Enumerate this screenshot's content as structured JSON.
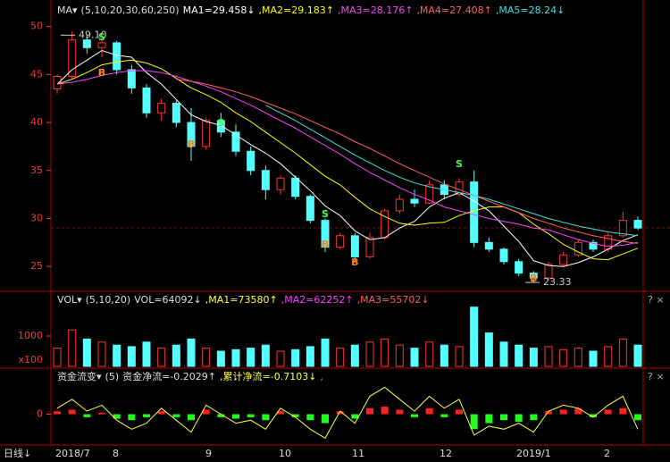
{
  "chart_data": [
    {
      "type": "candlestick",
      "indicator": "MA▾",
      "params": "(5,10,20,30,60,250)",
      "ylim": [
        22.5,
        50.9
      ],
      "yticks": [
        25,
        30,
        35,
        40,
        45,
        50
      ],
      "open": [
        43.5,
        44.8,
        48.6,
        47.8,
        48.3,
        45.5,
        43.6,
        41,
        42,
        40,
        37.5,
        40.2,
        39,
        37,
        35,
        33,
        34.2,
        32.3,
        29.8,
        27,
        28.2,
        26,
        28,
        30.8,
        32,
        31.6,
        33.5,
        32.5,
        33.8,
        27.5,
        26.8,
        25.5,
        24.3,
        23.8,
        25.2,
        26.2,
        27.5,
        26.8,
        28.2,
        29.8
      ],
      "high": [
        45,
        49.5,
        49.1,
        49,
        48.5,
        46,
        44,
        42.5,
        42.3,
        41.5,
        40.5,
        41,
        39.8,
        37.5,
        35.5,
        34.5,
        34.5,
        32.5,
        30,
        28.5,
        28.5,
        28.5,
        31,
        32.5,
        33,
        34,
        34,
        34.2,
        35,
        28,
        27,
        25.8,
        24.5,
        25.5,
        26.5,
        27.8,
        27.8,
        28.5,
        30.7,
        30.2
      ],
      "low": [
        43,
        44.5,
        47.2,
        46.8,
        45,
        43,
        40.5,
        40.2,
        39.5,
        36,
        37.2,
        38.5,
        36.5,
        34.5,
        32,
        32.5,
        32,
        29.5,
        26.5,
        26.8,
        25.5,
        25.8,
        27.8,
        30.5,
        31.2,
        31.5,
        32,
        32.3,
        27,
        26.5,
        25.2,
        24,
        23.3,
        23.5,
        25,
        26,
        26.5,
        26.5,
        28,
        28.8
      ],
      "close": [
        44.8,
        48.6,
        47.8,
        48.3,
        45.5,
        43.6,
        41,
        42,
        40,
        37.5,
        40.2,
        39,
        37,
        35,
        33,
        34.2,
        32.3,
        29.8,
        27,
        28.2,
        26,
        28,
        30.8,
        32,
        31.6,
        33.5,
        32.5,
        33.8,
        27.5,
        26.8,
        25.5,
        24.3,
        23.8,
        25.2,
        26.2,
        27.5,
        26.8,
        28.2,
        29.8,
        29
      ],
      "series": [
        {
          "name": "MA1=29.458↓",
          "color": "#ffffff",
          "values": [
            44,
            45.5,
            46.5,
            47.5,
            47,
            46.8,
            45.2,
            44,
            42.4,
            40.8,
            40.1,
            39.7,
            38.7,
            37.7,
            36.8,
            35.7,
            34.3,
            32.9,
            31.3,
            30.3,
            28.7,
            27.8,
            28,
            29,
            29.7,
            31.2,
            32.1,
            32.7,
            31.8,
            30.8,
            29.2,
            27.6,
            25.6,
            25.1,
            25,
            25.4,
            26,
            26.8,
            27.7,
            28.3
          ]
        },
        {
          "name": ",MA2=29.183↑",
          "color": "#ffff00",
          "values": [
            44,
            44.5,
            45.2,
            46,
            46.3,
            46.5,
            46.2,
            45.6,
            44.6,
            43.6,
            42.9,
            42.1,
            41,
            40.1,
            39,
            37.9,
            36.8,
            35.6,
            34.4,
            33.5,
            32.2,
            31,
            30.2,
            29.5,
            29.3,
            29.5,
            29.6,
            30.3,
            30.8,
            31.2,
            31.2,
            30.6,
            29.4,
            28.4,
            27.3,
            26.5,
            25.8,
            25.7,
            26.3,
            26.9
          ]
        },
        {
          "name": ",MA3=28.176↑",
          "color": "#ff40ff",
          "values": [
            44,
            44.2,
            44.5,
            44.9,
            45.2,
            45.4,
            45.4,
            45.2,
            44.8,
            44.3,
            43.8,
            43.2,
            42.5,
            41.8,
            41,
            40.2,
            39.4,
            38.5,
            37.6,
            36.7,
            35.7,
            34.8,
            34,
            33.2,
            32.5,
            31.9,
            31.2,
            30.8,
            30.4,
            30,
            29.7,
            29.4,
            29,
            28.8,
            28.3,
            27.8,
            27.4,
            27.1,
            27.2,
            27.5
          ]
        },
        {
          "name": ",MA4=27.408↑",
          "color": "#ff6060",
          "values": [
            null,
            null,
            null,
            null,
            null,
            null,
            null,
            null,
            44.5,
            44.3,
            44,
            43.6,
            43.2,
            42.7,
            42.1,
            41.5,
            40.9,
            40.2,
            39.5,
            38.8,
            38,
            37.3,
            36.5,
            35.7,
            35,
            34.3,
            33.6,
            33,
            32.4,
            31.8,
            31.2,
            30.6,
            30,
            29.5,
            29,
            28.6,
            28.2,
            27.9,
            27.6,
            27.4
          ]
        },
        {
          "name": ",MA5=28.24↓",
          "color": "#40e0e0",
          "values": [
            null,
            null,
            null,
            null,
            null,
            null,
            null,
            null,
            null,
            null,
            null,
            null,
            null,
            null,
            41.8,
            41,
            40.2,
            39.3,
            38.4,
            37.5,
            36.6,
            35.8,
            35,
            34.3,
            33.7,
            33.3,
            33,
            32.7,
            32.4,
            32,
            31.5,
            31,
            30.5,
            30,
            29.6,
            29.2,
            28.9,
            28.6,
            28.4,
            28.2
          ]
        }
      ],
      "annotations": [
        {
          "value": 49.1,
          "label": "49.10"
        },
        {
          "value": 23.33,
          "label": "23.33"
        }
      ],
      "signals": [
        "S",
        "B",
        "B",
        "S",
        "S",
        "B",
        "B",
        "S",
        "B"
      ],
      "up_color": "#ff3232",
      "down_color": "#54ffff"
    },
    {
      "type": "bar",
      "indicator": "VOL▾",
      "params": "(5,10,20)",
      "ylim": [
        0,
        2000
      ],
      "yticks": [
        1000
      ],
      "unit": "x100",
      "legend": [
        "VOL=64092↓",
        ",MA1=73580↑",
        ",MA2=62252↑",
        ",MA3=55702↓"
      ],
      "values": [
        600,
        1200,
        900,
        800,
        700,
        650,
        800,
        600,
        700,
        900,
        600,
        500,
        550,
        600,
        700,
        500,
        550,
        650,
        900,
        600,
        700,
        800,
        900,
        700,
        600,
        800,
        700,
        650,
        1950,
        1100,
        800,
        700,
        600,
        650,
        550,
        600,
        500,
        650,
        900,
        700
      ]
    },
    {
      "type": "flow",
      "indicator": "资金流变▾",
      "params": "(5)",
      "ylim": [
        -1,
        1
      ],
      "yticks": [
        0
      ],
      "legend": [
        "资金净流=-0.2029↑",
        ",累计净流=-0.7103↓",
        ","
      ],
      "values": [
        0.1,
        0.15,
        -0.1,
        0.05,
        -0.15,
        -0.2,
        -0.1,
        0.1,
        -0.1,
        -0.2,
        0.15,
        -0.1,
        -0.15,
        -0.1,
        -0.2,
        0.1,
        -0.1,
        -0.2,
        -0.3,
        0.1,
        -0.15,
        0.2,
        0.25,
        0.15,
        -0.1,
        0.2,
        -0.1,
        0.15,
        -0.5,
        -0.3,
        -0.2,
        -0.25,
        -0.2,
        0.1,
        0.15,
        0.2,
        -0.1,
        0.15,
        0.2,
        -0.2
      ],
      "line": [
        0.2,
        0.5,
        0.1,
        0.3,
        -0.2,
        -0.5,
        -0.3,
        0.2,
        -0.2,
        -0.6,
        0.3,
        0,
        -0.3,
        -0.2,
        -0.5,
        0.2,
        -0.1,
        -0.5,
        -0.8,
        0.1,
        -0.3,
        0.6,
        0.9,
        0.5,
        0.1,
        0.6,
        0.2,
        0.5,
        -0.7,
        -0.4,
        -0.5,
        -0.3,
        -0.6,
        0.1,
        0.3,
        0.2,
        -0.1,
        0.3,
        0.6,
        -0.5
      ],
      "line_color": "#ffff40",
      "up_color": "#ff2020",
      "down_color": "#20ff20"
    }
  ],
  "period": "日线↓",
  "xticks": [
    "2018/7",
    "8",
    "9",
    "10",
    "11",
    "12",
    "2019/1",
    "2"
  ]
}
